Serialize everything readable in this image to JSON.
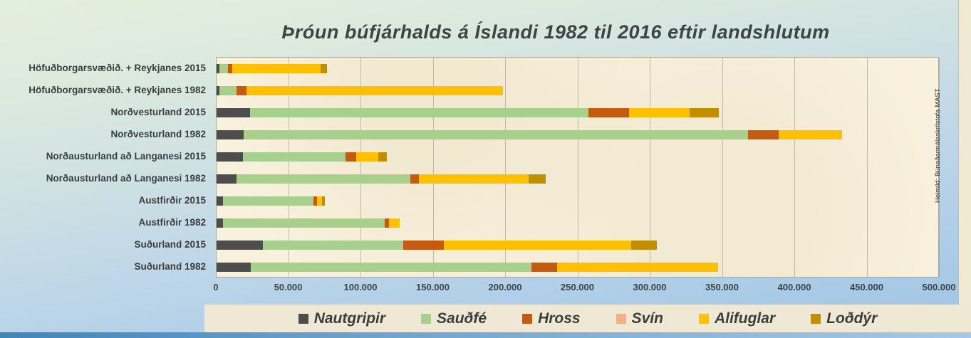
{
  "page": {
    "title": "Þróun búfjárhalds á Íslandi 1982 til 2016 eftir landshlutum",
    "source_note": "Heimild: Búnaðarmálaskrifstofa MAST"
  },
  "chart_data": {
    "type": "bar",
    "orientation": "horizontal",
    "stacked": true,
    "title": "Þróun búfjárhalds á Íslandi 1982 til 2016 eftir landshlutum",
    "xlabel": "",
    "ylabel": "",
    "xlim": [
      0,
      500000
    ],
    "grid": true,
    "legend_position": "bottom",
    "x_ticks": [
      "0",
      "50.000",
      "100.000",
      "150.000",
      "200.000",
      "250.000",
      "300.000",
      "350.000",
      "400.000",
      "450.000",
      "500.000"
    ],
    "x_tick_values": [
      0,
      50000,
      100000,
      150000,
      200000,
      250000,
      300000,
      350000,
      400000,
      450000,
      500000
    ],
    "categories": [
      "Höfuðborgarsvæðið. + Reykjanes 2015",
      "Höfuðborgarsvæðið. + Reykjanes 1982",
      "Norðvesturland 2015",
      "Norðvesturland 1982",
      "Norðausturland að Langanesi 2015",
      "Norðausturland að Langanesi 1982",
      "Austfirðir 2015",
      "Austfirðir 1982",
      "Suðurland 2015",
      "Suðurland 1982"
    ],
    "series": [
      {
        "name": "Nautgripir",
        "color": "#4d4d4d",
        "values": [
          2000,
          2000,
          23000,
          18500,
          18000,
          14000,
          4500,
          4500,
          32000,
          23500
        ]
      },
      {
        "name": "Sauðfé",
        "color": "#a8d08d",
        "values": [
          6000,
          12000,
          234000,
          349000,
          71000,
          120000,
          62500,
          112000,
          97000,
          194000
        ]
      },
      {
        "name": "Hross",
        "color": "#c55a11",
        "values": [
          3000,
          6500,
          28000,
          21000,
          7500,
          6000,
          2500,
          2500,
          28000,
          18000
        ]
      },
      {
        "name": "Svín",
        "color": "#f4b183",
        "values": [
          0,
          0,
          0,
          0,
          0,
          0,
          0,
          0,
          0,
          0
        ]
      },
      {
        "name": "Alifuglar",
        "color": "#ffc000",
        "values": [
          61000,
          177500,
          42000,
          44000,
          15500,
          76000,
          3500,
          7500,
          129500,
          111500
        ]
      },
      {
        "name": "Loðdýr",
        "color": "#bf8f00",
        "values": [
          4500,
          0,
          20500,
          0,
          5500,
          11500,
          2000,
          0,
          18000,
          0
        ]
      }
    ]
  }
}
